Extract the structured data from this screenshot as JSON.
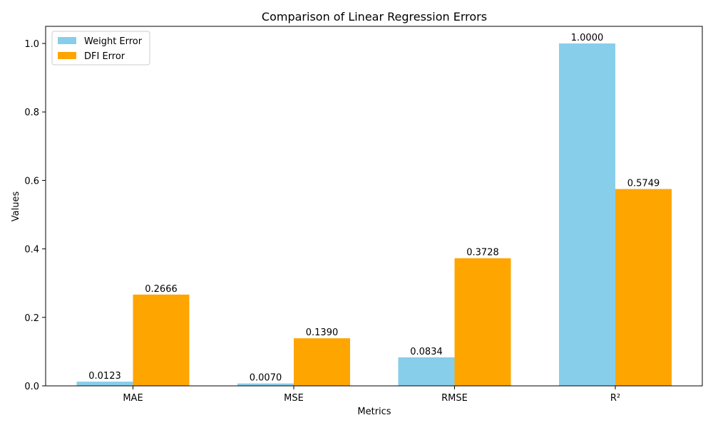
{
  "chart_data": {
    "type": "bar",
    "title": "Comparison of Linear Regression Errors",
    "xlabel": "Metrics",
    "ylabel": "Values",
    "categories": [
      "MAE",
      "MSE",
      "RMSE",
      "R²"
    ],
    "series": [
      {
        "name": "Weight Error",
        "color": "#87ceeb",
        "values": [
          0.0123,
          0.007,
          0.0834,
          1.0
        ],
        "labels": [
          "0.0123",
          "0.0070",
          "0.0834",
          "1.0000"
        ]
      },
      {
        "name": "DFI Error",
        "color": "#ffa500",
        "values": [
          0.2666,
          0.139,
          0.3728,
          0.5749
        ],
        "labels": [
          "0.2666",
          "0.1390",
          "0.3728",
          "0.5749"
        ]
      }
    ],
    "ylim": [
      0,
      1.05
    ],
    "yticks": [
      0.0,
      0.2,
      0.4,
      0.6,
      0.8,
      1.0
    ],
    "ytick_labels": [
      "0.0",
      "0.2",
      "0.4",
      "0.6",
      "0.8",
      "1.0"
    ],
    "grid": false,
    "legend_position": "top-left"
  }
}
